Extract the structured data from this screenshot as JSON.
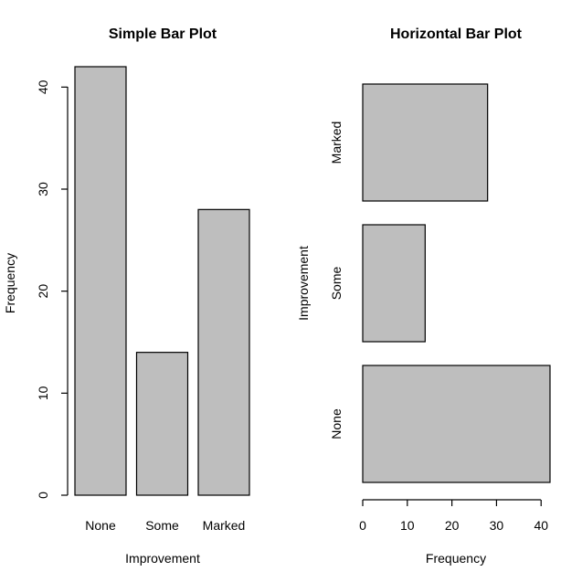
{
  "chart_data": [
    {
      "type": "bar",
      "orientation": "vertical",
      "title": "Simple Bar Plot",
      "xlabel": "Improvement",
      "ylabel": "Frequency",
      "categories": [
        "None",
        "Some",
        "Marked"
      ],
      "values": [
        42,
        14,
        28
      ],
      "ylim": [
        0,
        42
      ],
      "ticks": [
        "0",
        "10",
        "20",
        "30",
        "40"
      ],
      "bar_color": "#bebebe",
      "grid": false
    },
    {
      "type": "bar",
      "orientation": "horizontal",
      "title": "Horizontal Bar Plot",
      "xlabel": "Frequency",
      "ylabel": "Improvement",
      "categories": [
        "None",
        "Some",
        "Marked"
      ],
      "values": [
        42,
        14,
        28
      ],
      "xlim": [
        0,
        42
      ],
      "ticks": [
        "0",
        "10",
        "20",
        "30",
        "40"
      ],
      "bar_color": "#bebebe",
      "grid": false
    }
  ]
}
